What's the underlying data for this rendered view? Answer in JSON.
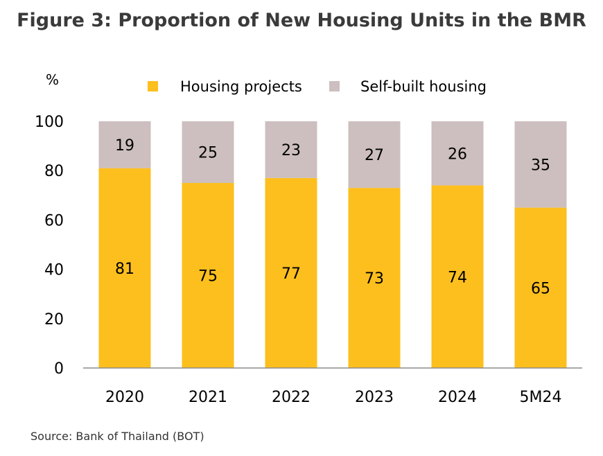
{
  "title": "Figure 3: Proportion of New Housing Units in the BMR",
  "source": "Source: Bank of Thailand (BOT)",
  "chart_data": {
    "type": "bar",
    "stacked": true,
    "title": "Figure 3: Proportion of New Housing Units in the BMR",
    "ylabel": "%",
    "xlabel": "",
    "ylim": [
      0,
      100
    ],
    "yticks": [
      0,
      20,
      40,
      60,
      80,
      100
    ],
    "grid": false,
    "legend_position": "top",
    "categories": [
      "2020",
      "2021",
      "2022",
      "2023",
      "2024",
      "5M24"
    ],
    "series": [
      {
        "name": "Housing projects",
        "color": "#FDBF1E",
        "values": [
          81,
          75,
          77,
          73,
          74,
          65
        ]
      },
      {
        "name": "Self-built housing",
        "color": "#CDBFBF",
        "values": [
          19,
          25,
          23,
          27,
          26,
          35
        ]
      }
    ]
  }
}
